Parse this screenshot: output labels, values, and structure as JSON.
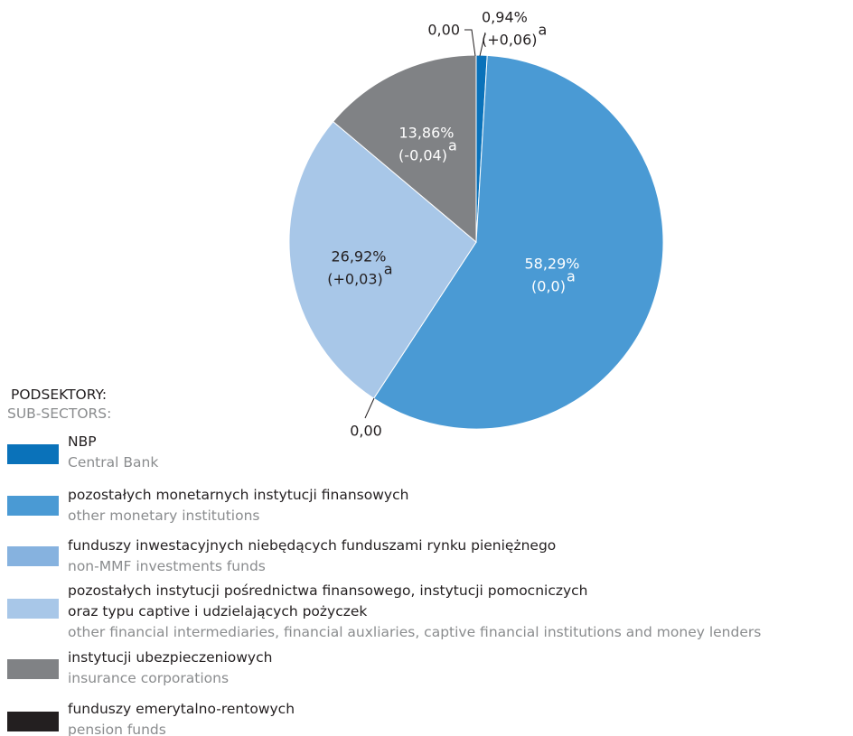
{
  "chart_data": {
    "type": "pie",
    "legend_title": "PODSEKTORY:",
    "legend_subtitle": "SUB-SECTORS:",
    "categories": [
      "NBP",
      "pozostałych monetarnych instytucji finansowych",
      "funduszy inwestacyjnych niebędących funduszami rynku pieniężnego",
      "pozostałych instytucji pośrednictwa finansowego, instytucji pomocniczych\noraz typu captive i udzielających pożyczek",
      "instytucji ubezpieczeniowych",
      "funduszy emerytalno-rentowych"
    ],
    "categories_en": [
      "Central Bank",
      "other monetary institutions",
      "non-MMF investments funds",
      "other financial intermediaries, financial auxliaries, captive financial institutions and money lenders",
      "insurance corporations",
      "pension funds"
    ],
    "values": [
      0.94,
      58.29,
      0.0,
      26.92,
      13.86,
      0.0
    ],
    "value_labels": [
      "0,94%",
      "58,29%",
      "0,00",
      "26,92%",
      "13,86%",
      "0,00"
    ],
    "changes": [
      0.06,
      0.0,
      null,
      0.03,
      -0.04,
      null
    ],
    "change_labels": [
      "(+0,06)",
      "(0,0)",
      null,
      "(+0,03)",
      "(-0,04)",
      null
    ],
    "note_mark": "a",
    "colors": [
      "#0a72ba",
      "#4a9ad4",
      "#86b2df",
      "#a8c7e8",
      "#808285",
      "#231f20"
    ]
  }
}
